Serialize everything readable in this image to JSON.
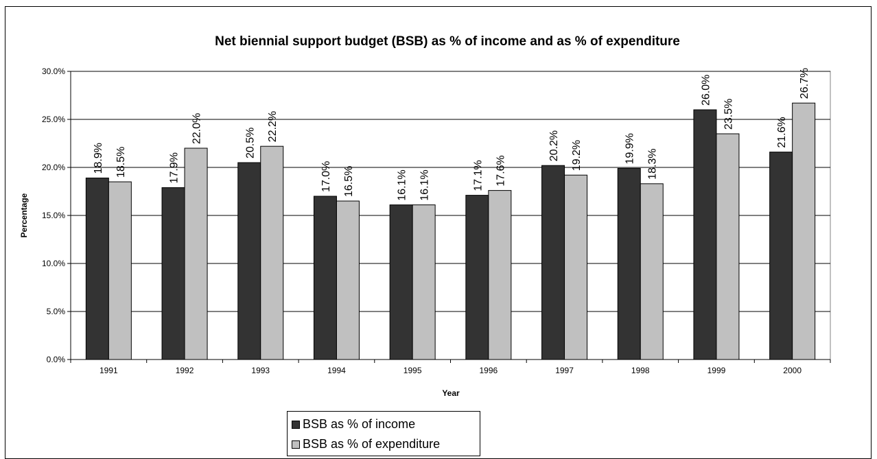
{
  "chart_data": {
    "type": "bar",
    "title": "Net biennial support budget (BSB) as % of income and as % of expenditure",
    "xlabel": "Year",
    "ylabel": "Percentage",
    "categories": [
      "1991",
      "1992",
      "1993",
      "1994",
      "1995",
      "1996",
      "1997",
      "1998",
      "1999",
      "2000"
    ],
    "ylim": [
      0,
      30
    ],
    "yticks": [
      "0.0%",
      "5.0%",
      "10.0%",
      "15.0%",
      "20.0%",
      "25.0%",
      "30.0%"
    ],
    "ytick_values": [
      0,
      5,
      10,
      15,
      20,
      25,
      30
    ],
    "grid": true,
    "legend_position": "bottom",
    "series": [
      {
        "name": "BSB  as % of income",
        "color": "#333333",
        "values": [
          18.9,
          17.9,
          20.5,
          17.0,
          16.1,
          17.1,
          20.2,
          19.9,
          26.0,
          21.6
        ],
        "labels": [
          "18.9%",
          "17.9%",
          "20.5%",
          "17.0%",
          "16.1%",
          "17.1%",
          "20.2%",
          "19.9%",
          "26.0%",
          "21.6%"
        ]
      },
      {
        "name": "BSB as % of expenditure",
        "color": "#c0c0c0",
        "values": [
          18.5,
          22.0,
          22.2,
          16.5,
          16.1,
          17.6,
          19.2,
          18.3,
          23.5,
          26.7
        ],
        "labels": [
          "18.5%",
          "22.0%",
          "22.2%",
          "16.5%",
          "16.1%",
          "17.6%",
          "19.2%",
          "18.3%",
          "23.5%",
          "26.7%"
        ]
      }
    ]
  }
}
